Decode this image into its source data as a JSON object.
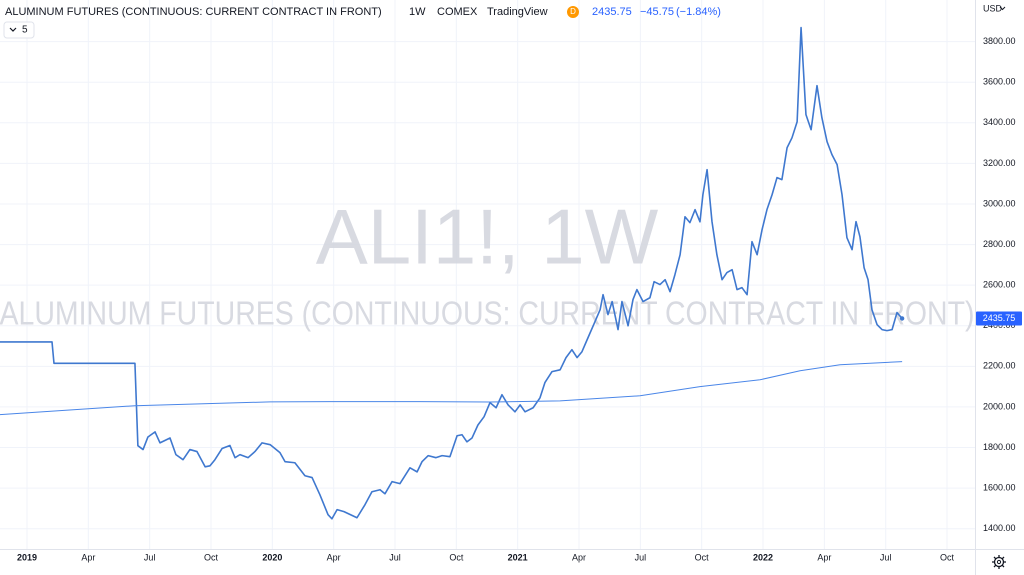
{
  "chart_data": {
    "type": "line",
    "title": "ALUMINUM FUTURES (CONTINUOUS: CURRENT CONTRACT IN FRONT)",
    "interval": "1W",
    "exchange": "COMEX",
    "source": "TradingView",
    "badge": "D",
    "last_price": "2435.75",
    "change": "−45.75",
    "change_percent": "(−1.84%)",
    "indicator_count": "5",
    "watermark": "ALI1!, 1W",
    "currency": "USD",
    "xlim": [
      2018.89,
      2022.864
    ],
    "ylim": [
      1300,
      4005
    ],
    "xticks": [
      2019,
      {
        "value": 2019.25,
        "label": "Apr"
      },
      {
        "value": 2019.5,
        "label": "Jul"
      },
      {
        "value": 2019.75,
        "label": "Oct"
      },
      2020,
      {
        "value": 2020.25,
        "label": "Apr"
      },
      {
        "value": 2020.5,
        "label": "Jul"
      },
      {
        "value": 2020.75,
        "label": "Oct"
      },
      2021,
      {
        "value": 2021.25,
        "label": "Apr"
      },
      {
        "value": 2021.5,
        "label": "Jul"
      },
      {
        "value": 2021.75,
        "label": "Oct"
      },
      2022,
      {
        "value": 2022.25,
        "label": "Apr"
      },
      {
        "value": 2022.5,
        "label": "Jul"
      },
      {
        "value": 2022.75,
        "label": "Oct"
      }
    ],
    "yticks": [
      {
        "value": 1400,
        "label": "1400.00"
      },
      {
        "value": 1600,
        "label": "1600.00"
      },
      {
        "value": 1800,
        "label": "1800.00"
      },
      {
        "value": 2000,
        "label": "2000.00"
      },
      {
        "value": 2200,
        "label": "2200.00"
      },
      {
        "value": 2400,
        "label": "2400.00"
      },
      {
        "value": 2600,
        "label": "2600.00"
      },
      {
        "value": 2800,
        "label": "2800.00"
      },
      {
        "value": 3000,
        "label": "3000.00"
      },
      {
        "value": 3200,
        "label": "3200.00"
      },
      {
        "value": 3400,
        "label": "3400.00"
      },
      {
        "value": 3600,
        "label": "3600.00"
      },
      {
        "value": 3800,
        "label": "3800.00"
      }
    ],
    "grid": true,
    "series": [
      {
        "color": "#3f78cf",
        "width": 1.6,
        "x": [
          2018.89,
          2019.102,
          2019.11,
          2019.44,
          2019.452,
          2019.473,
          2019.493,
          2019.522,
          2019.542,
          2019.583,
          2019.607,
          2019.636,
          2019.664,
          2019.693,
          2019.726,
          2019.746,
          2019.766,
          2019.795,
          2019.827,
          2019.848,
          2019.868,
          2019.901,
          2019.929,
          2019.958,
          2019.991,
          2020.031,
          2020.052,
          2020.092,
          2020.133,
          2020.162,
          2020.194,
          2020.227,
          2020.243,
          2020.264,
          2020.292,
          2020.345,
          2020.378,
          2020.406,
          2020.439,
          2020.459,
          2020.488,
          2020.52,
          2020.561,
          2020.59,
          2020.61,
          2020.635,
          2020.667,
          2020.692,
          2020.724,
          2020.753,
          2020.773,
          2020.793,
          2020.814,
          2020.838,
          2020.863,
          2020.887,
          2020.912,
          2020.936,
          2020.961,
          2020.989,
          2021.01,
          2021.03,
          2021.063,
          2021.091,
          2021.111,
          2021.14,
          2021.173,
          2021.197,
          2021.221,
          2021.242,
          2021.262,
          2021.283,
          2021.315,
          2021.336,
          2021.348,
          2021.368,
          2021.385,
          2021.409,
          2021.425,
          2021.45,
          2021.47,
          2021.486,
          2021.511,
          2021.539,
          2021.556,
          2021.58,
          2021.601,
          2021.621,
          2021.641,
          2021.662,
          2021.682,
          2021.702,
          2021.723,
          2021.743,
          2021.755,
          2021.772,
          2021.792,
          2021.812,
          2021.833,
          2021.853,
          2021.874,
          2021.894,
          2021.914,
          2021.935,
          2021.955,
          2021.976,
          2021.996,
          2022.016,
          2022.037,
          2022.057,
          2022.077,
          2022.098,
          2022.118,
          2022.139,
          2022.155,
          2022.175,
          2022.196,
          2022.22,
          2022.24,
          2022.261,
          2022.281,
          2022.302,
          2022.322,
          2022.342,
          2022.363,
          2022.379,
          2022.395,
          2022.412,
          2022.428,
          2022.444,
          2022.465,
          2022.485,
          2022.505,
          2022.526,
          2022.546,
          2022.567
        ],
        "values": [
          2320,
          2320,
          2215,
          2215,
          1809,
          1790,
          1852,
          1877,
          1823,
          1847,
          1765,
          1740,
          1790,
          1780,
          1705,
          1710,
          1740,
          1795,
          1810,
          1750,
          1765,
          1750,
          1780,
          1823,
          1814,
          1775,
          1730,
          1725,
          1661,
          1652,
          1567,
          1469,
          1449,
          1494,
          1484,
          1454,
          1519,
          1582,
          1592,
          1572,
          1632,
          1622,
          1700,
          1680,
          1730,
          1760,
          1750,
          1760,
          1755,
          1858,
          1863,
          1828,
          1847,
          1911,
          1952,
          2021,
          1996,
          2060,
          2010,
          1976,
          2010,
          1976,
          1996,
          2045,
          2120,
          2174,
          2183,
          2243,
          2282,
          2243,
          2272,
          2331,
          2420,
          2479,
          2553,
          2455,
          2519,
          2381,
          2519,
          2400,
          2529,
          2578,
          2519,
          2538,
          2617,
          2603,
          2627,
          2568,
          2652,
          2750,
          2937,
          2908,
          2972,
          2912,
          3046,
          3169,
          2913,
          2750,
          2627,
          2662,
          2676,
          2578,
          2588,
          2553,
          2814,
          2750,
          2873,
          2972,
          3046,
          3130,
          3120,
          3277,
          3326,
          3405,
          3869,
          3440,
          3366,
          3583,
          3425,
          3307,
          3243,
          3194,
          3046,
          2834,
          2775,
          2913,
          2839,
          2686,
          2627,
          2479,
          2405,
          2381,
          2376,
          2381,
          2465,
          2435.75
        ]
      },
      {
        "color": "#4a86e8",
        "width": 1,
        "x": [
          2018.89,
          2019.44,
          2019.991,
          2020.235,
          2020.602,
          2020.887,
          2021.173,
          2021.499,
          2021.743,
          2021.988,
          2022.151,
          2022.314,
          2022.477,
          2022.567
        ],
        "values": [
          1962,
          2006,
          2025,
          2026,
          2026,
          2024,
          2030,
          2055,
          2100,
          2134,
          2178,
          2208,
          2218,
          2223
        ]
      }
    ]
  }
}
